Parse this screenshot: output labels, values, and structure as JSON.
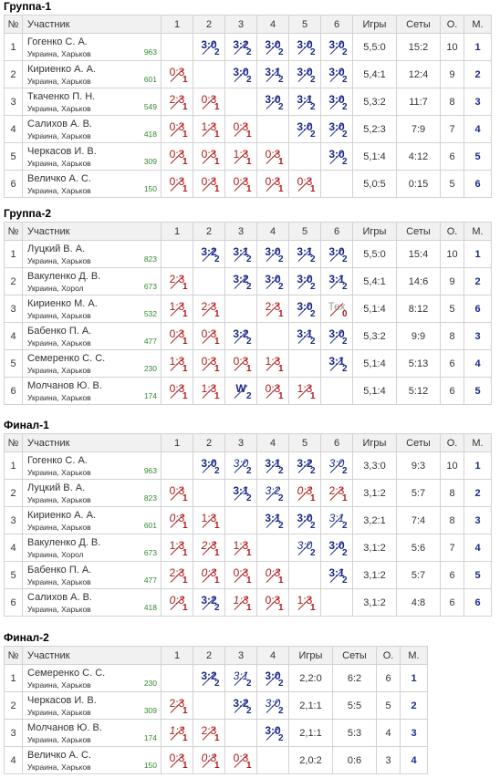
{
  "headers": {
    "num": "№",
    "participant": "Участник",
    "games": "Игры",
    "sets": "Сеты",
    "points": "О.",
    "place": "М."
  },
  "colors": {
    "win": "#1c2a88",
    "loss": "#b01818",
    "rating": "#2e8b2e",
    "self_cell": "#c8c8c8"
  },
  "groups": [
    {
      "title": "Группа-1",
      "cols": [
        "1",
        "2",
        "3",
        "4",
        "5",
        "6"
      ],
      "players": [
        {
          "num": "1",
          "name": "Гогенко С. А.",
          "city": "Украина, Харьков",
          "rating": "963",
          "games": "5,5:0",
          "sets": "15:2",
          "points": "10",
          "place": "1",
          "cells": [
            null,
            {
              "s": "3:0",
              "p": "2",
              "t": "win"
            },
            {
              "s": "3:2",
              "p": "2",
              "t": "win"
            },
            {
              "s": "3:0",
              "p": "2",
              "t": "win"
            },
            {
              "s": "3:0",
              "p": "2",
              "t": "win"
            },
            {
              "s": "3:0",
              "p": "2",
              "t": "win"
            }
          ]
        },
        {
          "num": "2",
          "name": "Кириенко А. А.",
          "city": "Украина, Харьков",
          "rating": "601",
          "games": "5,4:1",
          "sets": "12:4",
          "points": "9",
          "place": "2",
          "cells": [
            {
              "s": "0:3",
              "p": "1",
              "t": "loss"
            },
            null,
            {
              "s": "3:0",
              "p": "2",
              "t": "win"
            },
            {
              "s": "3:1",
              "p": "2",
              "t": "win"
            },
            {
              "s": "3:0",
              "p": "2",
              "t": "win"
            },
            {
              "s": "3:0",
              "p": "2",
              "t": "win"
            }
          ]
        },
        {
          "num": "3",
          "name": "Ткаченко П. Н.",
          "city": "Украина, Харьков",
          "rating": "549",
          "games": "5,3:2",
          "sets": "11:7",
          "points": "8",
          "place": "3",
          "cells": [
            {
              "s": "2:3",
              "p": "1",
              "t": "loss"
            },
            {
              "s": "0:3",
              "p": "1",
              "t": "loss"
            },
            null,
            {
              "s": "3:0",
              "p": "2",
              "t": "win"
            },
            {
              "s": "3:1",
              "p": "2",
              "t": "win"
            },
            {
              "s": "3:0",
              "p": "2",
              "t": "win"
            }
          ]
        },
        {
          "num": "4",
          "name": "Салихов А. В.",
          "city": "Украина, Харьков",
          "rating": "418",
          "games": "5,2:3",
          "sets": "7:9",
          "points": "7",
          "place": "4",
          "cells": [
            {
              "s": "0:3",
              "p": "1",
              "t": "loss"
            },
            {
              "s": "1:3",
              "p": "1",
              "t": "loss"
            },
            {
              "s": "0:3",
              "p": "1",
              "t": "loss"
            },
            null,
            {
              "s": "3:0",
              "p": "2",
              "t": "win"
            },
            {
              "s": "3:0",
              "p": "2",
              "t": "win"
            }
          ]
        },
        {
          "num": "5",
          "name": "Черкасов И. В.",
          "city": "Украина, Харьков",
          "rating": "309",
          "games": "5,1:4",
          "sets": "4:12",
          "points": "6",
          "place": "5",
          "cells": [
            {
              "s": "0:3",
              "p": "1",
              "t": "loss"
            },
            {
              "s": "0:3",
              "p": "1",
              "t": "loss"
            },
            {
              "s": "1:3",
              "p": "1",
              "t": "loss"
            },
            {
              "s": "0:3",
              "p": "1",
              "t": "loss"
            },
            null,
            {
              "s": "3:0",
              "p": "2",
              "t": "win"
            }
          ]
        },
        {
          "num": "6",
          "name": "Величко А. С.",
          "city": "Украина, Харьков",
          "rating": "150",
          "games": "5,0:5",
          "sets": "0:15",
          "points": "5",
          "place": "6",
          "cells": [
            {
              "s": "0:3",
              "p": "1",
              "t": "loss"
            },
            {
              "s": "0:3",
              "p": "1",
              "t": "loss"
            },
            {
              "s": "0:3",
              "p": "1",
              "t": "loss"
            },
            {
              "s": "0:3",
              "p": "1",
              "t": "loss"
            },
            {
              "s": "0:3",
              "p": "1",
              "t": "loss"
            },
            null
          ]
        }
      ]
    },
    {
      "title": "Группа-2",
      "cols": [
        "1",
        "2",
        "3",
        "4",
        "5",
        "6"
      ],
      "players": [
        {
          "num": "1",
          "name": "Луцкий В. А.",
          "city": "Украина, Харьков",
          "rating": "823",
          "games": "5,5:0",
          "sets": "15:4",
          "points": "10",
          "place": "1",
          "cells": [
            null,
            {
              "s": "3:2",
              "p": "2",
              "t": "win"
            },
            {
              "s": "3:1",
              "p": "2",
              "t": "win"
            },
            {
              "s": "3:0",
              "p": "2",
              "t": "win"
            },
            {
              "s": "3:1",
              "p": "2",
              "t": "win"
            },
            {
              "s": "3:0",
              "p": "2",
              "t": "win"
            }
          ]
        },
        {
          "num": "2",
          "name": "Вакуленко Д. В.",
          "city": "Украина, Хорол",
          "rating": "673",
          "games": "5,4:1",
          "sets": "14:6",
          "points": "9",
          "place": "2",
          "cells": [
            {
              "s": "2:3",
              "p": "1",
              "t": "loss"
            },
            null,
            {
              "s": "3:2",
              "p": "2",
              "t": "win"
            },
            {
              "s": "3:0",
              "p": "2",
              "t": "win"
            },
            {
              "s": "3:0",
              "p": "2",
              "t": "win"
            },
            {
              "s": "3:1",
              "p": "2",
              "t": "win"
            }
          ]
        },
        {
          "num": "3",
          "name": "Кириенко М. А.",
          "city": "Украина, Харьков",
          "rating": "532",
          "games": "5,1:4",
          "sets": "8:12",
          "points": "5",
          "place": "6",
          "cells": [
            {
              "s": "1:3",
              "p": "1",
              "t": "loss"
            },
            {
              "s": "2:3",
              "p": "1",
              "t": "loss"
            },
            null,
            {
              "s": "2:3",
              "p": "1",
              "t": "loss"
            },
            {
              "s": "3:0",
              "p": "2",
              "t": "win"
            },
            {
              "s": "Тех",
              "p": "0",
              "t": "tex"
            }
          ]
        },
        {
          "num": "4",
          "name": "Бабенко П. А.",
          "city": "Украина, Харьков",
          "rating": "477",
          "games": "5,3:2",
          "sets": "9:9",
          "points": "8",
          "place": "3",
          "cells": [
            {
              "s": "0:3",
              "p": "1",
              "t": "loss"
            },
            {
              "s": "0:3",
              "p": "1",
              "t": "loss"
            },
            {
              "s": "3:2",
              "p": "2",
              "t": "win"
            },
            null,
            {
              "s": "3:1",
              "p": "2",
              "t": "win"
            },
            {
              "s": "3:0",
              "p": "2",
              "t": "win"
            }
          ]
        },
        {
          "num": "5",
          "name": "Семеренко С. С.",
          "city": "Украина, Харьков",
          "rating": "230",
          "games": "5,1:4",
          "sets": "5:13",
          "points": "6",
          "place": "4",
          "cells": [
            {
              "s": "1:3",
              "p": "1",
              "t": "loss"
            },
            {
              "s": "0:3",
              "p": "1",
              "t": "loss"
            },
            {
              "s": "0:3",
              "p": "1",
              "t": "loss"
            },
            {
              "s": "1:3",
              "p": "1",
              "t": "loss"
            },
            null,
            {
              "s": "3:1",
              "p": "2",
              "t": "win"
            }
          ]
        },
        {
          "num": "6",
          "name": "Молчанов Ю. В.",
          "city": "Украина, Харьков",
          "rating": "174",
          "games": "5,1:4",
          "sets": "5:12",
          "points": "6",
          "place": "5",
          "cells": [
            {
              "s": "0:3",
              "p": "1",
              "t": "loss"
            },
            {
              "s": "1:3",
              "p": "1",
              "t": "loss"
            },
            {
              "s": "W",
              "p": "2",
              "t": "win"
            },
            {
              "s": "0:3",
              "p": "1",
              "t": "loss"
            },
            {
              "s": "1:3",
              "p": "1",
              "t": "loss"
            },
            null
          ]
        }
      ]
    },
    {
      "title": "Финал-1",
      "cols": [
        "1",
        "2",
        "3",
        "4",
        "5",
        "6"
      ],
      "players": [
        {
          "num": "1",
          "name": "Гогенко С. А.",
          "city": "Украина, Харьков",
          "rating": "963",
          "games": "3,3:0",
          "sets": "9:3",
          "points": "10",
          "place": "1",
          "cells": [
            null,
            {
              "s": "3:0",
              "p": "2",
              "t": "win"
            },
            {
              "s": "3:0",
              "p": "2",
              "t": "iwin"
            },
            {
              "s": "3:1",
              "p": "2",
              "t": "win"
            },
            {
              "s": "3:2",
              "p": "2",
              "t": "win"
            },
            {
              "s": "3:0",
              "p": "2",
              "t": "iwin"
            }
          ]
        },
        {
          "num": "2",
          "name": "Луцкий В. А.",
          "city": "Украина, Харьков",
          "rating": "823",
          "games": "3,1:2",
          "sets": "5:7",
          "points": "8",
          "place": "2",
          "cells": [
            {
              "s": "0:3",
              "p": "1",
              "t": "loss"
            },
            null,
            {
              "s": "3:1",
              "p": "2",
              "t": "win"
            },
            {
              "s": "3:2",
              "p": "2",
              "t": "iwin"
            },
            {
              "s": "0:3",
              "p": "1",
              "t": "iloss"
            },
            {
              "s": "2:3",
              "p": "1",
              "t": "loss"
            }
          ]
        },
        {
          "num": "3",
          "name": "Кириенко А. А.",
          "city": "Украина, Харьков",
          "rating": "601",
          "games": "3,2:1",
          "sets": "7:4",
          "points": "8",
          "place": "3",
          "cells": [
            {
              "s": "0:3",
              "p": "1",
              "t": "iloss"
            },
            {
              "s": "1:3",
              "p": "1",
              "t": "loss"
            },
            null,
            {
              "s": "3:1",
              "p": "2",
              "t": "win"
            },
            {
              "s": "3:0",
              "p": "2",
              "t": "win"
            },
            {
              "s": "3:1",
              "p": "2",
              "t": "iwin"
            }
          ]
        },
        {
          "num": "4",
          "name": "Вакуленко Д. В.",
          "city": "Украина, Хорол",
          "rating": "673",
          "games": "3,1:2",
          "sets": "5:6",
          "points": "7",
          "place": "4",
          "cells": [
            {
              "s": "1:3",
              "p": "1",
              "t": "loss"
            },
            {
              "s": "2:3",
              "p": "1",
              "t": "iloss"
            },
            {
              "s": "1:3",
              "p": "1",
              "t": "loss"
            },
            null,
            {
              "s": "3:0",
              "p": "2",
              "t": "iwin"
            },
            {
              "s": "3:0",
              "p": "2",
              "t": "win"
            }
          ]
        },
        {
          "num": "5",
          "name": "Бабенко П. А.",
          "city": "Украина, Харьков",
          "rating": "477",
          "games": "3,1:2",
          "sets": "5:7",
          "points": "6",
          "place": "5",
          "cells": [
            {
              "s": "2:3",
              "p": "1",
              "t": "loss"
            },
            {
              "s": "0:3",
              "p": "1",
              "t": "iloss"
            },
            {
              "s": "0:3",
              "p": "1",
              "t": "loss"
            },
            {
              "s": "0:3",
              "p": "1",
              "t": "iloss"
            },
            null,
            {
              "s": "3:1",
              "p": "2",
              "t": "win"
            }
          ]
        },
        {
          "num": "6",
          "name": "Салихов А. В.",
          "city": "Украина, Харьков",
          "rating": "418",
          "games": "3,1:2",
          "sets": "4:8",
          "points": "6",
          "place": "6",
          "cells": [
            {
              "s": "0:3",
              "p": "1",
              "t": "iloss"
            },
            {
              "s": "3:2",
              "p": "2",
              "t": "win"
            },
            {
              "s": "1:3",
              "p": "1",
              "t": "iloss"
            },
            {
              "s": "0:3",
              "p": "1",
              "t": "loss"
            },
            {
              "s": "1:3",
              "p": "1",
              "t": "loss"
            },
            null
          ]
        }
      ]
    },
    {
      "title": "Финал-2",
      "cols": [
        "1",
        "2",
        "3",
        "4"
      ],
      "players": [
        {
          "num": "1",
          "name": "Семеренко С. С.",
          "city": "Украина, Харьков",
          "rating": "230",
          "games": "2,2:0",
          "sets": "6:2",
          "points": "6",
          "place": "1",
          "cells": [
            null,
            {
              "s": "3:2",
              "p": "2",
              "t": "win"
            },
            {
              "s": "3:1",
              "p": "2",
              "t": "iwin"
            },
            {
              "s": "3:0",
              "p": "2",
              "t": "win"
            }
          ]
        },
        {
          "num": "2",
          "name": "Черкасов И. В.",
          "city": "Украина, Харьков",
          "rating": "309",
          "games": "2,1:1",
          "sets": "5:5",
          "points": "5",
          "place": "2",
          "cells": [
            {
              "s": "2:3",
              "p": "1",
              "t": "loss"
            },
            null,
            {
              "s": "3:2",
              "p": "2",
              "t": "win"
            },
            {
              "s": "3:0",
              "p": "2",
              "t": "iwin"
            }
          ]
        },
        {
          "num": "3",
          "name": "Молчанов Ю. В.",
          "city": "Украина, Харьков",
          "rating": "174",
          "games": "2,1:1",
          "sets": "5:3",
          "points": "4",
          "place": "3",
          "cells": [
            {
              "s": "1:3",
              "p": "1",
              "t": "iloss"
            },
            {
              "s": "2:3",
              "p": "1",
              "t": "loss"
            },
            null,
            {
              "s": "3:0",
              "p": "2",
              "t": "win"
            }
          ]
        },
        {
          "num": "4",
          "name": "Величко А. С.",
          "city": "Украина, Харьков",
          "rating": "150",
          "games": "2,0:2",
          "sets": "0:6",
          "points": "3",
          "place": "4",
          "cells": [
            {
              "s": "0:3",
              "p": "1",
              "t": "loss"
            },
            {
              "s": "0:3",
              "p": "1",
              "t": "iloss"
            },
            {
              "s": "0:3",
              "p": "1",
              "t": "loss"
            },
            null
          ]
        }
      ]
    }
  ]
}
